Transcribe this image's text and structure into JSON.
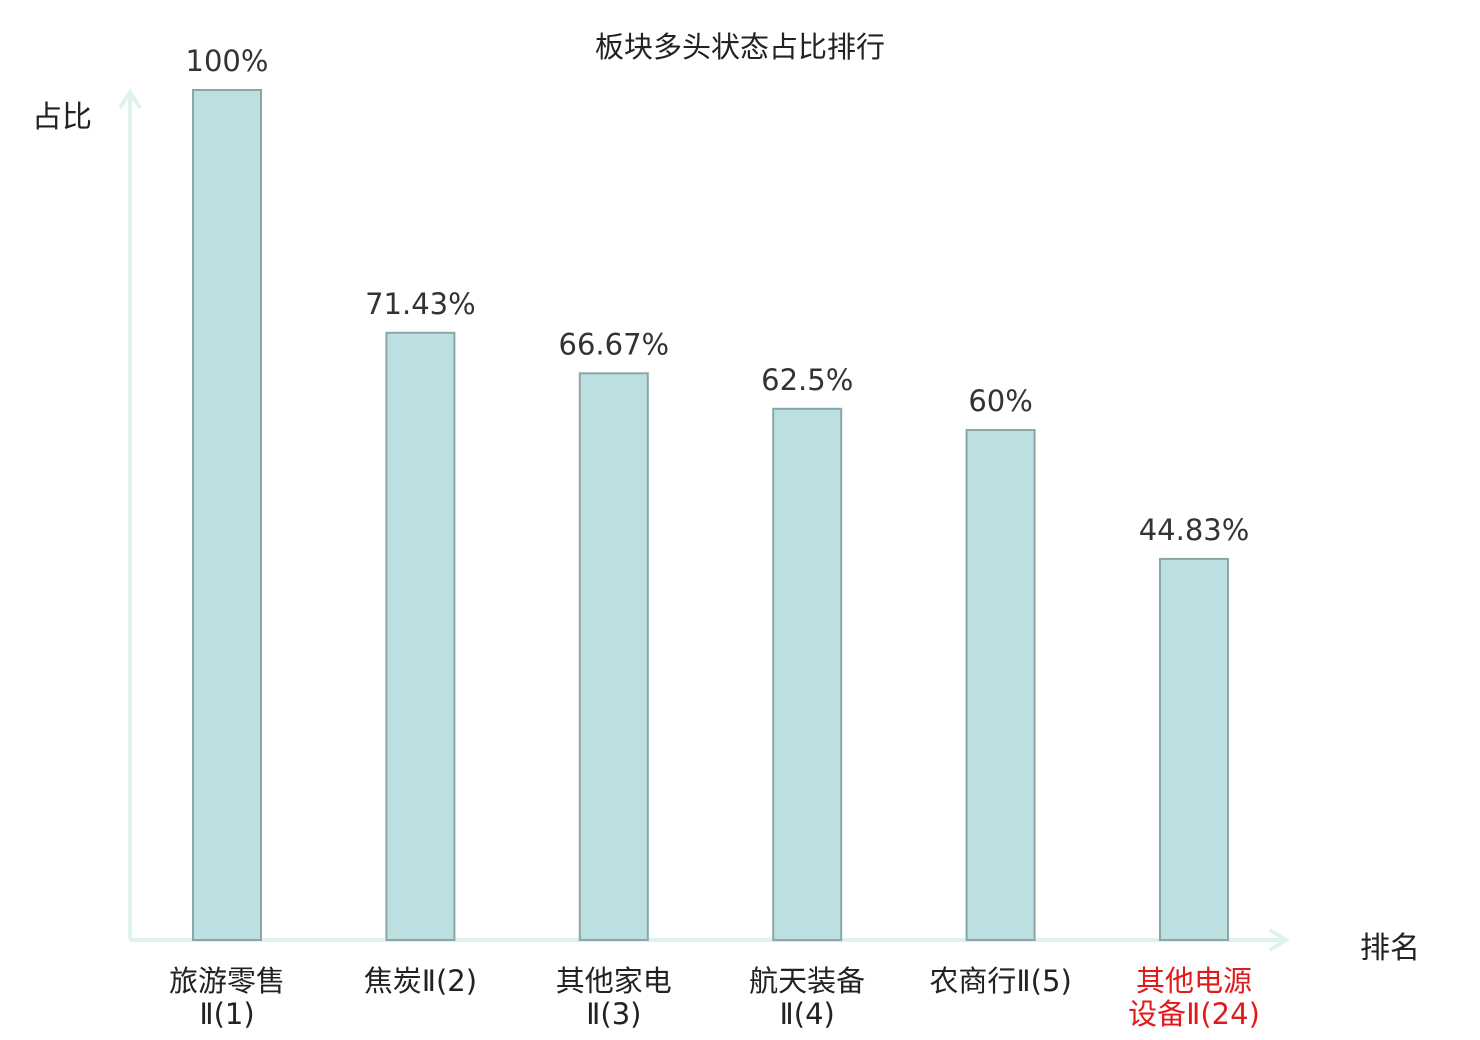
{
  "title": "板块多头状态占比排行",
  "chart_data": {
    "type": "bar",
    "title": "板块多头状态占比排行",
    "xlabel": "排名",
    "ylabel": "占比",
    "ylim": [
      0,
      100
    ],
    "grid": false,
    "categories": [
      "旅游零售\nⅡ(1)",
      "焦炭Ⅱ(2)",
      "其他家电\nⅡ(3)",
      "航天装备\nⅡ(4)",
      "农商行Ⅱ(5)",
      "其他电源\n设备Ⅱ(24)"
    ],
    "values": [
      100,
      71.43,
      66.67,
      62.5,
      60,
      44.83
    ],
    "value_labels": [
      "100%",
      "71.43%",
      "66.67%",
      "62.5%",
      "60%",
      "44.83%"
    ],
    "highlight_index": 5,
    "colors": {
      "bar_fill": "#bce0e2",
      "bar_stroke": "#8aa6a8",
      "axis": "#dff2ef",
      "label": "#222222",
      "value_label": "#333333",
      "highlight": "#e31a1c"
    }
  }
}
